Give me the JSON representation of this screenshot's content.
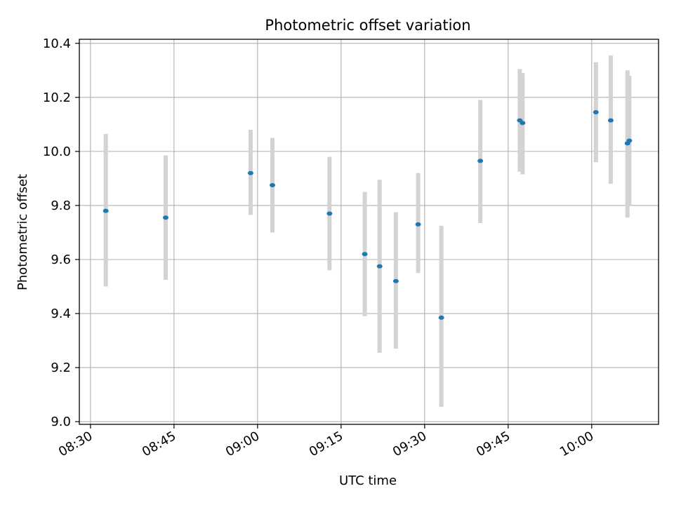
{
  "chart_data": {
    "type": "scatter",
    "title": "Photometric offset variation",
    "xlabel": "UTC time",
    "ylabel": "Photometric offset",
    "x_axis_type": "time",
    "xlim": [
      "08:28",
      "10:12"
    ],
    "ylim": [
      8.99,
      10.415
    ],
    "x_ticks": [
      "08:30",
      "08:45",
      "09:00",
      "09:15",
      "09:30",
      "09:45",
      "10:00"
    ],
    "y_ticks": [
      "9.0",
      "9.2",
      "9.4",
      "9.6",
      "9.8",
      "10.0",
      "10.2",
      "10.4"
    ],
    "grid": true,
    "marker_color": "#1f77b4",
    "errorbar_color": "#d3d3d3",
    "points": [
      {
        "time": "08:32:45",
        "y": 9.78,
        "err_low": 9.5,
        "err_high": 10.065
      },
      {
        "time": "08:43:30",
        "y": 9.755,
        "err_low": 9.525,
        "err_high": 9.985
      },
      {
        "time": "08:58:45",
        "y": 9.92,
        "err_low": 9.765,
        "err_high": 10.08
      },
      {
        "time": "09:02:40",
        "y": 9.875,
        "err_low": 9.7,
        "err_high": 10.05
      },
      {
        "time": "09:12:55",
        "y": 9.77,
        "err_low": 9.56,
        "err_high": 9.98
      },
      {
        "time": "09:19:15",
        "y": 9.62,
        "err_low": 9.39,
        "err_high": 9.85
      },
      {
        "time": "09:21:55",
        "y": 9.575,
        "err_low": 9.255,
        "err_high": 9.895
      },
      {
        "time": "09:24:50",
        "y": 9.52,
        "err_low": 9.27,
        "err_high": 9.775
      },
      {
        "time": "09:28:50",
        "y": 9.73,
        "err_low": 9.55,
        "err_high": 9.92
      },
      {
        "time": "09:33:00",
        "y": 9.385,
        "err_low": 9.055,
        "err_high": 9.725
      },
      {
        "time": "09:40:00",
        "y": 9.965,
        "err_low": 9.735,
        "err_high": 10.19
      },
      {
        "time": "09:47:05",
        "y": 10.115,
        "err_low": 9.925,
        "err_high": 10.305
      },
      {
        "time": "09:47:35",
        "y": 10.105,
        "err_low": 9.915,
        "err_high": 10.29
      },
      {
        "time": "10:00:45",
        "y": 10.145,
        "err_low": 9.96,
        "err_high": 10.33
      },
      {
        "time": "10:03:25",
        "y": 10.115,
        "err_low": 9.88,
        "err_high": 10.355
      },
      {
        "time": "10:06:25",
        "y": 10.03,
        "err_low": 9.755,
        "err_high": 10.3
      },
      {
        "time": "10:06:45",
        "y": 10.04,
        "err_low": 9.8,
        "err_high": 10.28
      }
    ]
  }
}
